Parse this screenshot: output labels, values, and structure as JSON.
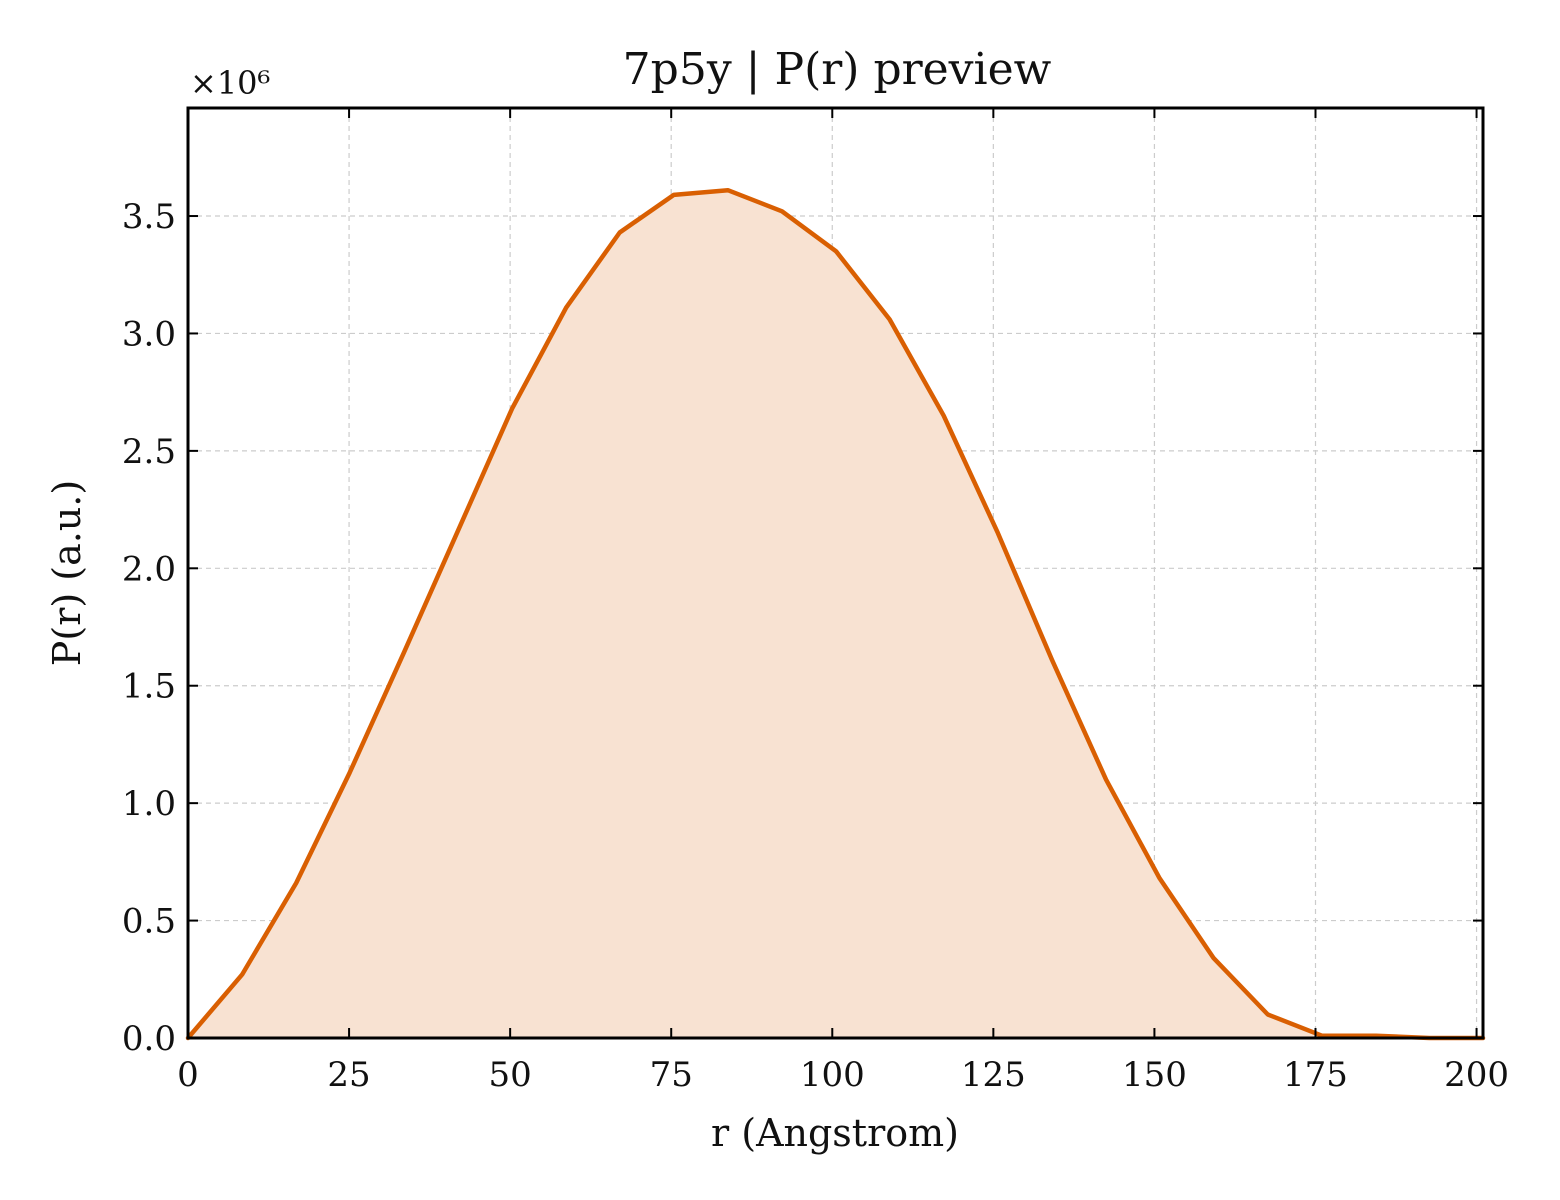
{
  "chart_data": {
    "type": "area",
    "title": "7p5y | P(r) preview",
    "xlabel": "r (Angstrom)",
    "ylabel": "P(r) (a.u.)",
    "y_multiplier_label": "×10⁶",
    "y_multiplier": 1000000,
    "xlim": [
      0,
      201
    ],
    "ylim": [
      0,
      3.96
    ],
    "x_ticks": [
      0,
      25,
      50,
      75,
      100,
      125,
      150,
      175,
      200
    ],
    "x_tick_labels": [
      "0",
      "25",
      "50",
      "75",
      "100",
      "125",
      "150",
      "175",
      "200"
    ],
    "y_ticks": [
      0,
      0.5,
      1.0,
      1.5,
      2.0,
      2.5,
      3.0,
      3.5
    ],
    "y_tick_labels": [
      "0.0",
      "0.5",
      "1.0",
      "1.5",
      "2.0",
      "2.5",
      "3.0",
      "3.5"
    ],
    "grid": true,
    "colors": {
      "line": "#d95f02",
      "fill": "#f8e2d2"
    },
    "series": [
      {
        "x": [
          0,
          8.4,
          16.8,
          25.1,
          33.5,
          41.9,
          50.3,
          58.7,
          67.0,
          75.4,
          83.8,
          92.2,
          100.6,
          108.9,
          117.3,
          125.7,
          134.1,
          142.5,
          150.8,
          159.2,
          167.6,
          176.0,
          184.4,
          192.7,
          201.0
        ],
        "y": [
          0.0,
          0.27,
          0.66,
          1.13,
          1.64,
          2.16,
          2.68,
          3.11,
          3.43,
          3.59,
          3.61,
          3.52,
          3.35,
          3.06,
          2.65,
          2.15,
          1.61,
          1.1,
          0.68,
          0.34,
          0.1,
          0.01,
          0.01,
          0.0,
          0.0
        ]
      }
    ]
  }
}
